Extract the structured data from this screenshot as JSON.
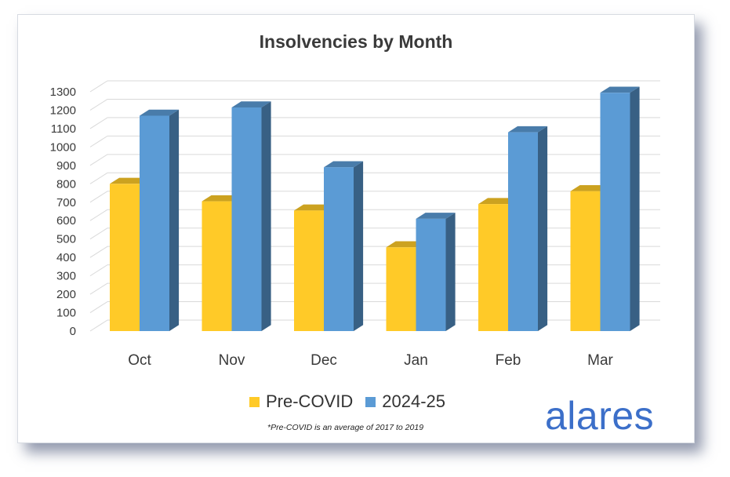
{
  "chart_data": {
    "type": "bar",
    "title": "Insolvencies by Month",
    "categories": [
      "Oct",
      "Nov",
      "Dec",
      "Jan",
      "Feb",
      "Mar"
    ],
    "series": [
      {
        "name": "Pre-COVID",
        "color": "#ffca28",
        "values": [
          800,
          705,
          655,
          455,
          690,
          760
        ]
      },
      {
        "name": "2024-25",
        "color": "#5b9bd5",
        "values": [
          1170,
          1215,
          890,
          610,
          1080,
          1295
        ]
      }
    ],
    "ylim": [
      0,
      1300
    ],
    "yticks": [
      0,
      100,
      200,
      300,
      400,
      500,
      600,
      700,
      800,
      900,
      1000,
      1100,
      1200,
      1300
    ],
    "grid": true,
    "legend_position": "bottom",
    "style": "3d-column"
  },
  "footnote": "*Pre-COVID is an average of 2017 to 2019",
  "logo_text": "alares"
}
